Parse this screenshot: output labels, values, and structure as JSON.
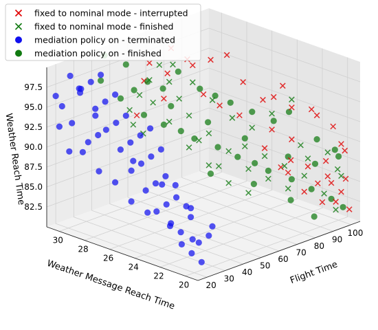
{
  "chart_data": {
    "type": "scatter",
    "title": "",
    "xlabel": "Flight Time",
    "ylabel": "Weather Message Reach Time",
    "zlabel": "Weather Reach Time",
    "xlim": [
      15,
      105
    ],
    "ylim": [
      19,
      31
    ],
    "zlim": [
      80,
      100
    ],
    "xticks": [
      "20",
      "30",
      "40",
      "50",
      "60",
      "70",
      "80",
      "90",
      "100"
    ],
    "yticks": [
      "30",
      "28",
      "26",
      "24",
      "22",
      "20"
    ],
    "zticks": [
      "82.5",
      "85.0",
      "87.5",
      "90.0",
      "92.5",
      "95.0",
      "97.5"
    ],
    "grid": true,
    "legend_position": "upper-left",
    "series": [
      {
        "name": "fixed to nominal mode - interrupted",
        "marker": "x",
        "color": "#e00000",
        "points": [
          [
            90,
            23,
            96
          ],
          [
            92,
            21,
            94
          ],
          [
            95,
            21,
            93
          ],
          [
            97,
            20,
            92
          ],
          [
            85,
            23,
            95
          ],
          [
            88,
            22,
            94
          ],
          [
            98,
            19.5,
            90
          ],
          [
            100,
            19.5,
            89
          ],
          [
            80,
            26,
            99
          ],
          [
            78,
            27,
            98
          ],
          [
            75,
            28,
            97
          ],
          [
            82,
            25,
            96
          ],
          [
            86,
            24,
            94
          ],
          [
            70,
            29,
            99
          ],
          [
            72,
            28,
            98
          ],
          [
            65,
            30,
            97
          ],
          [
            68,
            29,
            96
          ],
          [
            76,
            26,
            93
          ],
          [
            80,
            25,
            92
          ],
          [
            74,
            27,
            94
          ],
          [
            84,
            23,
            91
          ],
          [
            88,
            22,
            90
          ],
          [
            62,
            30,
            95
          ],
          [
            66,
            29,
            93
          ],
          [
            58,
            30,
            91
          ],
          [
            96,
            20,
            85
          ],
          [
            98,
            19.5,
            84
          ],
          [
            94,
            20,
            86
          ],
          [
            92,
            20.5,
            85
          ],
          [
            99,
            19,
            82
          ],
          [
            90,
            21,
            87
          ],
          [
            95,
            19.5,
            83
          ],
          [
            86,
            22,
            86
          ],
          [
            88,
            21,
            84
          ],
          [
            84,
            21.5,
            88
          ],
          [
            82,
            22,
            87
          ],
          [
            80,
            23,
            89
          ],
          [
            93,
            20,
            88
          ],
          [
            97,
            19,
            86
          ],
          [
            91,
            20,
            83
          ]
        ]
      },
      {
        "name": "fixed to nominal mode - finished",
        "marker": "x",
        "color": "#117a11",
        "points": [
          [
            92,
            20,
            84
          ],
          [
            95,
            19.5,
            82
          ],
          [
            90,
            21,
            88
          ],
          [
            88,
            21,
            86
          ],
          [
            86,
            22,
            84
          ],
          [
            84,
            22,
            87
          ],
          [
            80,
            23,
            88
          ],
          [
            78,
            24,
            86
          ],
          [
            82,
            23,
            85
          ],
          [
            76,
            24,
            89
          ],
          [
            74,
            25,
            88
          ],
          [
            72,
            25.5,
            86
          ],
          [
            70,
            26,
            90
          ],
          [
            68,
            26.5,
            89
          ],
          [
            66,
            27,
            92
          ],
          [
            64,
            27.5,
            94
          ],
          [
            62,
            28,
            96
          ],
          [
            60,
            28.5,
            98
          ],
          [
            58,
            29,
            96
          ],
          [
            56,
            29.5,
            94
          ],
          [
            54,
            30,
            92
          ],
          [
            58,
            29.5,
            89
          ],
          [
            62,
            28,
            91
          ],
          [
            66,
            27,
            88
          ],
          [
            70,
            26,
            86
          ],
          [
            74,
            25,
            84
          ],
          [
            78,
            24,
            83
          ],
          [
            96,
            19.5,
            87
          ],
          [
            94,
            20,
            89
          ],
          [
            98,
            19.5,
            86
          ],
          [
            80,
            24,
            91
          ],
          [
            84,
            23,
            93
          ],
          [
            88,
            22,
            95
          ],
          [
            72,
            26,
            94
          ],
          [
            76,
            25,
            92
          ],
          [
            68,
            27,
            96
          ],
          [
            64,
            28,
            98
          ],
          [
            60,
            29,
            93
          ],
          [
            56,
            30,
            90
          ],
          [
            86,
            21,
            90
          ]
        ]
      },
      {
        "name": "mediation policy on - terminated",
        "marker": "o",
        "color": "#1010ee",
        "points": [
          [
            20,
            21,
            83
          ],
          [
            22,
            20.5,
            82
          ],
          [
            24,
            20,
            81
          ],
          [
            21,
            22,
            85
          ],
          [
            23,
            21.5,
            84
          ],
          [
            25,
            21,
            86
          ],
          [
            20,
            23,
            86
          ],
          [
            22,
            22.5,
            87
          ],
          [
            24,
            22,
            88
          ],
          [
            26,
            21.5,
            87
          ],
          [
            21,
            24,
            88
          ],
          [
            23,
            23.5,
            89
          ],
          [
            25,
            23,
            90
          ],
          [
            27,
            22.5,
            89
          ],
          [
            20,
            25,
            90
          ],
          [
            22,
            24.5,
            91
          ],
          [
            24,
            24,
            92
          ],
          [
            26,
            23.5,
            93
          ],
          [
            21,
            26,
            92
          ],
          [
            23,
            25.5,
            93
          ],
          [
            25,
            25,
            94
          ],
          [
            27,
            24.5,
            95
          ],
          [
            20,
            27,
            94
          ],
          [
            22,
            26.5,
            95
          ],
          [
            24,
            26,
            96
          ],
          [
            21,
            28,
            96
          ],
          [
            23,
            27.5,
            97
          ],
          [
            25,
            27,
            98
          ],
          [
            20,
            29,
            98
          ],
          [
            22,
            28.5,
            99
          ],
          [
            24,
            28,
            100
          ],
          [
            21,
            30,
            99
          ],
          [
            23,
            29.5,
            97
          ],
          [
            20,
            30.5,
            95
          ],
          [
            22,
            30,
            93
          ],
          [
            24,
            29,
            91
          ],
          [
            26,
            28.5,
            92
          ],
          [
            28,
            26,
            90
          ],
          [
            30,
            24,
            88
          ],
          [
            32,
            22,
            86
          ],
          [
            21,
            29,
            90
          ],
          [
            23,
            28,
            88
          ],
          [
            25,
            27,
            87
          ],
          [
            27,
            26,
            85
          ],
          [
            29,
            25,
            84
          ],
          [
            31,
            23.5,
            83
          ],
          [
            33,
            22,
            82
          ],
          [
            26,
            20.5,
            83
          ],
          [
            28,
            20,
            84
          ],
          [
            30,
            20,
            85
          ],
          [
            20,
            31,
            96
          ],
          [
            22,
            31,
            92
          ],
          [
            24,
            30.5,
            89
          ],
          [
            26,
            30,
            97
          ],
          [
            28,
            29,
            94
          ]
        ]
      },
      {
        "name": "mediation policy on - finished",
        "marker": "o",
        "color": "#117a11",
        "points": [
          [
            40,
            30,
            100
          ],
          [
            45,
            29,
            99
          ],
          [
            50,
            28,
            97
          ],
          [
            55,
            27.5,
            96
          ],
          [
            60,
            27,
            98
          ],
          [
            65,
            26,
            96
          ],
          [
            70,
            25.5,
            95
          ],
          [
            75,
            25,
            94
          ],
          [
            80,
            24,
            93
          ],
          [
            85,
            23,
            92
          ],
          [
            90,
            22.5,
            93
          ],
          [
            95,
            21,
            90
          ],
          [
            100,
            20,
            88
          ],
          [
            42,
            29,
            95
          ],
          [
            48,
            28,
            93
          ],
          [
            52,
            27,
            92
          ],
          [
            58,
            26.5,
            91
          ],
          [
            62,
            26,
            90
          ],
          [
            68,
            25,
            89
          ],
          [
            72,
            24,
            88
          ],
          [
            78,
            23.5,
            87
          ],
          [
            82,
            23,
            86
          ],
          [
            88,
            22,
            85
          ],
          [
            92,
            21,
            84
          ],
          [
            96,
            20,
            83
          ],
          [
            99,
            19.5,
            82
          ],
          [
            98,
            20,
            89
          ],
          [
            94,
            21,
            87
          ],
          [
            86,
            22,
            88
          ],
          [
            76,
            24,
            90
          ],
          [
            66,
            25.5,
            92
          ],
          [
            56,
            27,
            94
          ],
          [
            46,
            28.5,
            96
          ],
          [
            38,
            30,
            97
          ],
          [
            90,
            20.5,
            81
          ],
          [
            84,
            21.5,
            83
          ],
          [
            74,
            23,
            85
          ],
          [
            64,
            25,
            86
          ]
        ]
      }
    ]
  }
}
